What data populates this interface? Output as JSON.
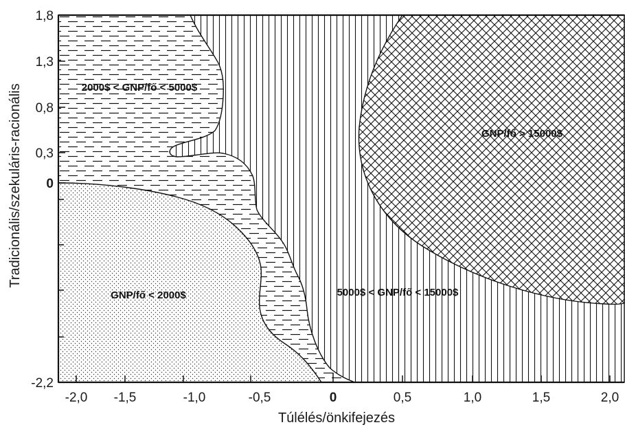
{
  "chart_data": {
    "type": "area",
    "title": "",
    "xlabel": "Túlélés/önkifejezés",
    "ylabel": "Tradicionális/szekuláris-racionális",
    "xlim": [
      -2.2,
      2.1
    ],
    "ylim": [
      -2.2,
      1.8
    ],
    "x_ticks": [
      "-2,0",
      "-1,5",
      "-1,0",
      "-0,5",
      "0",
      "0,5",
      "1,0",
      "1,5",
      "2,0"
    ],
    "y_ticks": [
      "1,8",
      "1,3",
      "0,8",
      "0,3",
      "0",
      "-2,2"
    ],
    "regions": [
      {
        "label": "GNP/fő < 2000$",
        "pattern": "dots"
      },
      {
        "label": "2000$ < GNP/fő < 5000$",
        "pattern": "dashes"
      },
      {
        "label": "5000$ < GNP/fő < 15000$",
        "pattern": "vertical-lines"
      },
      {
        "label": "GNP/fő > 15000$",
        "pattern": "crosshatch"
      }
    ]
  }
}
